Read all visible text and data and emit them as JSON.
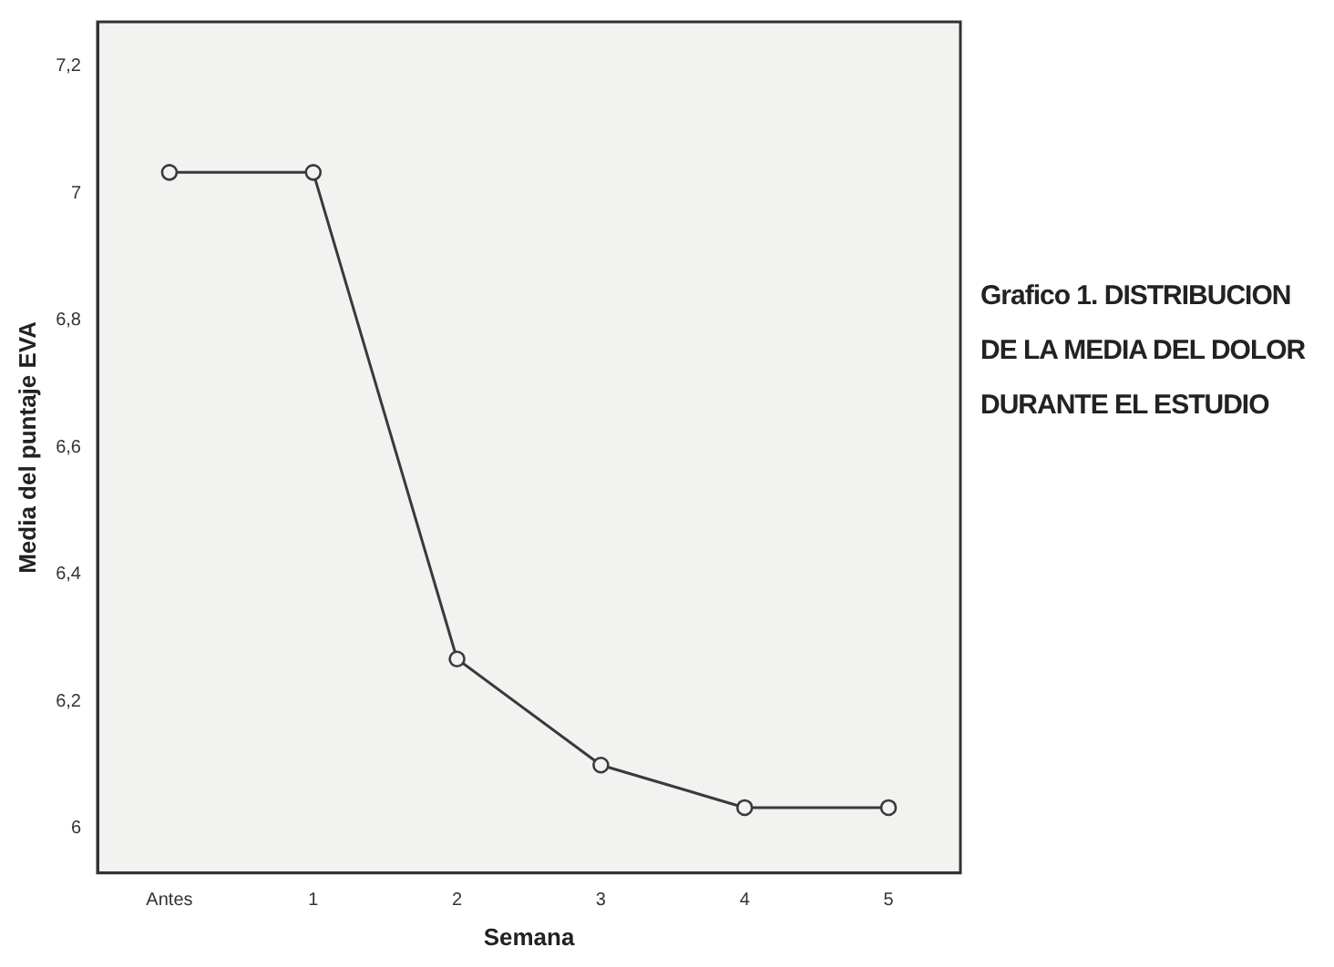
{
  "chart_data": {
    "type": "line",
    "title": "Grafico 1.   DISTRIBUCION DE LA MEDIA DEL DOLOR DURANTE EL ESTUDIO",
    "xlabel": "Semana",
    "ylabel": "Media del puntaje EVA",
    "categories": [
      "Antes",
      "1",
      "2",
      "3",
      "4",
      "5"
    ],
    "series": [
      {
        "color": "#3a3a3a",
        "values": [
          7.033,
          7.033,
          6.267,
          6.1,
          6.033,
          6.033
        ]
      }
    ],
    "ylim": [
      5.93,
      7.27
    ],
    "yticks": [
      6,
      {
        "value": 6.2,
        "label": "6,2"
      },
      {
        "value": 6.4,
        "label": "6,4"
      },
      {
        "value": 6.6,
        "label": "6,6"
      },
      {
        "value": 6.8,
        "label": "6,8"
      },
      7,
      {
        "value": 7.2,
        "label": "7,2"
      }
    ],
    "grid": false,
    "legend": false,
    "marker": "circle",
    "line_style": "solid"
  }
}
